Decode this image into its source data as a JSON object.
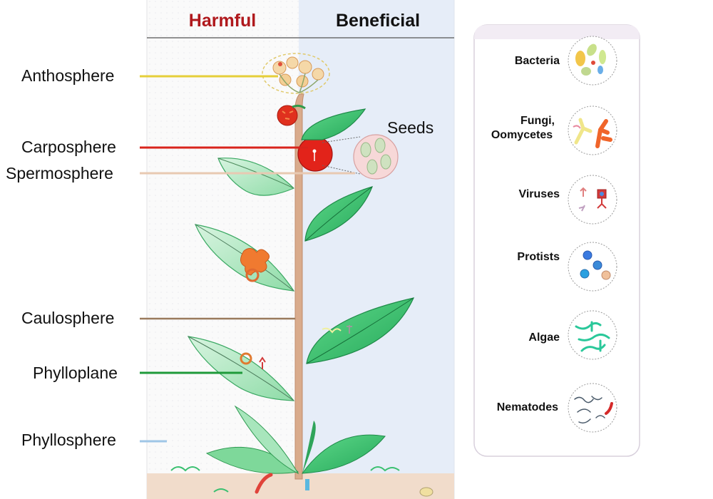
{
  "headers": {
    "harmful": "Harmful",
    "beneficial": "Beneficial"
  },
  "compartments": [
    {
      "label": "Anthosphere",
      "line_color": "#e5cf3a"
    },
    {
      "label": "Carposphere",
      "line_color": "#d9241c"
    },
    {
      "label": "Spermosphere",
      "line_color": "#e8c9b2"
    },
    {
      "label": "Caulosphere",
      "line_color": "#9a7a5c"
    },
    {
      "label": "Phylloplane",
      "line_color": "#1f9a3a"
    },
    {
      "label": "Phyllosphere",
      "line_color": "#9fc6e6"
    }
  ],
  "seeds_label": "Seeds",
  "microbes": [
    {
      "line1": "Bacteria",
      "line2": "",
      "icon": "bacteria-icon"
    },
    {
      "line1": "Fungi,",
      "line2": "Oomycetes",
      "icon": "fungi-icon"
    },
    {
      "line1": "Viruses",
      "line2": "",
      "icon": "virus-icon"
    },
    {
      "line1": "Protists",
      "line2": "",
      "icon": "protist-icon"
    },
    {
      "line1": "Algae",
      "line2": "",
      "icon": "algae-icon"
    },
    {
      "line1": "Nematodes",
      "line2": "",
      "icon": "nematode-icon"
    }
  ],
  "colors": {
    "harmful": "#b0191d",
    "beneficial_bg": "#e6edf8",
    "leaf": "#3ec36a",
    "stem": "#d6a88a",
    "panel_border": "#d8d0dc"
  }
}
